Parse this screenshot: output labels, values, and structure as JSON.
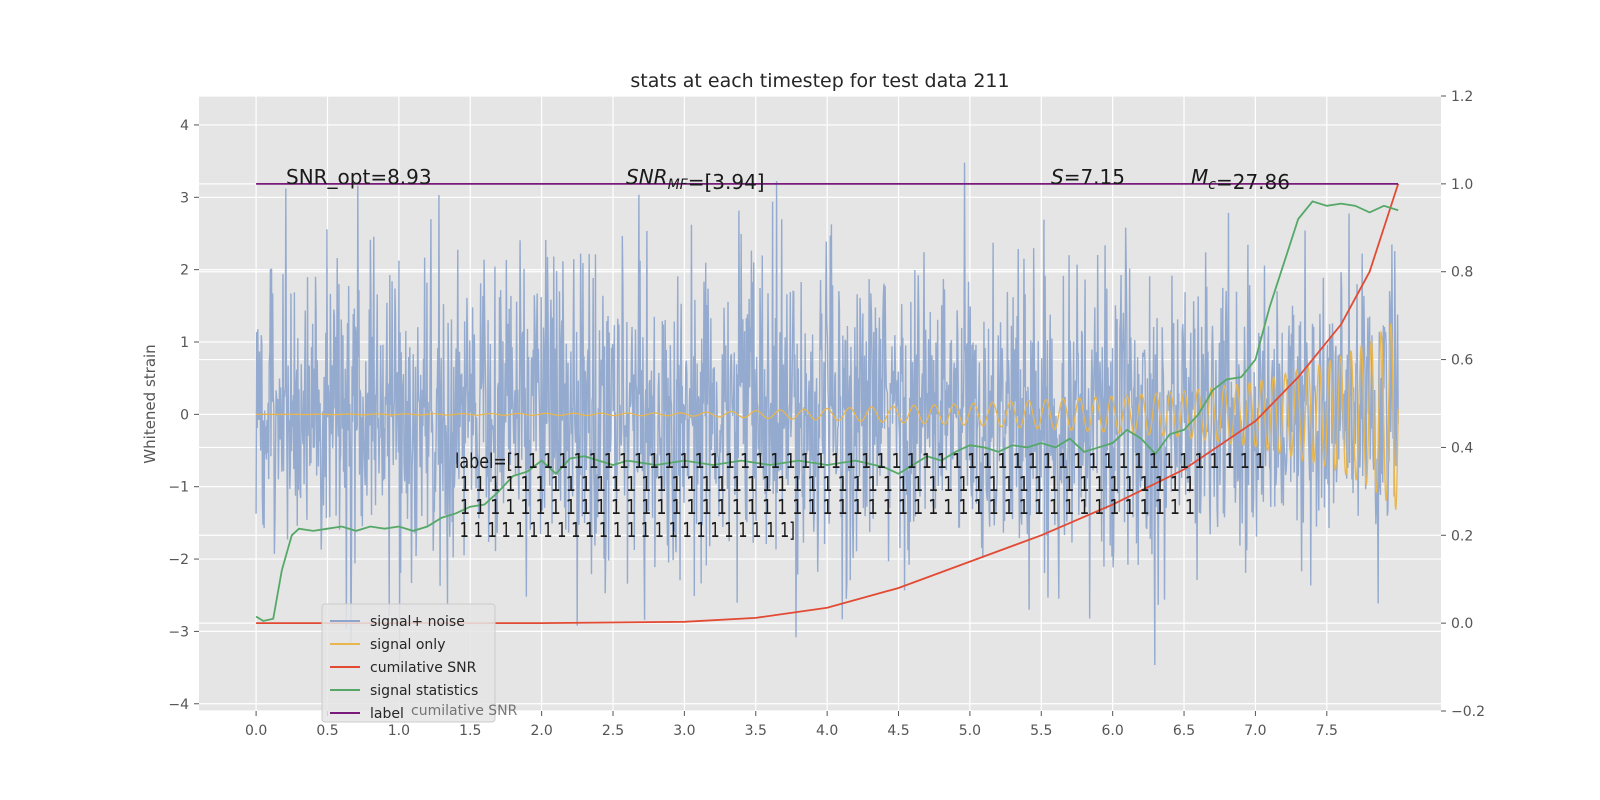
{
  "chart_data": {
    "type": "line",
    "title": "stats at each timestep for test data 211",
    "xlabel": "",
    "ylabel": "Whitened strain",
    "ylabel_right": "",
    "xlim": [
      -0.4,
      8.3
    ],
    "ylim": [
      -4.1,
      4.4
    ],
    "ylim_right": [
      -0.2,
      1.2
    ],
    "grid": true,
    "x_ticks": [
      "0.0",
      "0.5",
      "1.0",
      "1.5",
      "2.0",
      "2.5",
      "3.0",
      "3.5",
      "4.0",
      "4.5",
      "5.0",
      "5.5",
      "6.0",
      "6.5",
      "7.0",
      "7.5"
    ],
    "y_ticks": [
      "4",
      "3",
      "2",
      "1",
      "0",
      "−1",
      "−2",
      "−3",
      "−4"
    ],
    "y_right_ticks": [
      "1.2",
      "1.0",
      "0.8",
      "0.6",
      "0.4",
      "0.2",
      "0.0",
      "−0.2"
    ],
    "legend_placement": "lower-left",
    "series": [
      {
        "name": "signal+ noise",
        "axis": "left",
        "color": "#8fa6cc",
        "note_values": "dense noise time series, roughly within -3.6 to 4.0, std about 1",
        "x_range": [
          0.0,
          8.0
        ]
      },
      {
        "name": "signal only",
        "axis": "left",
        "color": "#e8b64f",
        "x": [
          0.0,
          3.0,
          4.0,
          5.0,
          6.0,
          6.5,
          7.0,
          7.5,
          7.8,
          8.0
        ],
        "envelope": [
          0.0,
          0.02,
          0.08,
          0.15,
          0.25,
          0.32,
          0.45,
          0.72,
          1.0,
          1.35
        ]
      },
      {
        "name": "cumilative SNR",
        "axis": "right",
        "color": "#e24a33",
        "x": [
          0.0,
          1.0,
          2.0,
          3.0,
          3.5,
          4.0,
          4.5,
          5.0,
          5.5,
          6.0,
          6.5,
          7.0,
          7.3,
          7.6,
          7.8,
          8.0
        ],
        "values": [
          0.0,
          0.0,
          0.0,
          0.003,
          0.012,
          0.035,
          0.08,
          0.14,
          0.2,
          0.27,
          0.35,
          0.46,
          0.56,
          0.68,
          0.8,
          1.0
        ]
      },
      {
        "name": "signal statistics",
        "axis": "right",
        "color": "#55a868",
        "x": [
          0.0,
          0.05,
          0.12,
          0.18,
          0.25,
          0.3,
          0.4,
          0.5,
          0.6,
          0.7,
          0.8,
          0.9,
          1.0,
          1.1,
          1.2,
          1.3,
          1.4,
          1.5,
          1.6,
          1.7,
          1.8,
          1.9,
          2.0,
          2.1,
          2.2,
          2.3,
          2.4,
          2.5,
          2.6,
          2.8,
          3.0,
          3.2,
          3.4,
          3.6,
          3.8,
          4.0,
          4.2,
          4.4,
          4.5,
          4.6,
          4.7,
          4.8,
          4.9,
          5.0,
          5.1,
          5.2,
          5.3,
          5.4,
          5.5,
          5.6,
          5.7,
          5.8,
          5.9,
          6.0,
          6.1,
          6.2,
          6.3,
          6.4,
          6.5,
          6.6,
          6.7,
          6.8,
          6.9,
          7.0,
          7.1,
          7.2,
          7.3,
          7.4,
          7.5,
          7.6,
          7.7,
          7.8,
          7.9,
          8.0
        ],
        "values": [
          0.015,
          0.005,
          0.01,
          0.12,
          0.2,
          0.215,
          0.21,
          0.215,
          0.22,
          0.21,
          0.22,
          0.215,
          0.22,
          0.21,
          0.22,
          0.24,
          0.25,
          0.265,
          0.27,
          0.3,
          0.335,
          0.345,
          0.37,
          0.34,
          0.375,
          0.38,
          0.37,
          0.36,
          0.37,
          0.36,
          0.37,
          0.36,
          0.37,
          0.36,
          0.37,
          0.36,
          0.37,
          0.355,
          0.34,
          0.36,
          0.38,
          0.37,
          0.39,
          0.405,
          0.4,
          0.39,
          0.405,
          0.4,
          0.41,
          0.4,
          0.42,
          0.39,
          0.4,
          0.41,
          0.44,
          0.42,
          0.385,
          0.43,
          0.44,
          0.475,
          0.53,
          0.555,
          0.56,
          0.6,
          0.72,
          0.82,
          0.92,
          0.96,
          0.95,
          0.955,
          0.95,
          0.935,
          0.95,
          0.94
        ]
      },
      {
        "name": "label",
        "axis": "right",
        "color": "#7a1a7a",
        "x": [
          0.0,
          8.0
        ],
        "values": [
          1.0,
          1.0
        ]
      }
    ],
    "annotations": [
      "SNR_opt=8.93",
      "SNR_MF=[3.94]",
      "S=7.15",
      "M_c=27.86",
      "label=[1 1 1 1 1 1 1 1 1 1 1 1 1 1 1 1 1 1 1 1 1 1 1 1 1 1 1 1 1 1 1 1 1 1 1 1 1 1 1 1 1 1 1 1 1 1 1 1 1 1 1 1 1 1 1 1 1 1 1 1 1 1 1 1 1 1 1 1 1 1 1 1 1 1 1 1 1 1 1 1 1 1 1 1 1 1 1 1 1 1 1 1 1 1 1 1 1 1 1 1 1 1 1 1 1 1 1 1 1 1 1 1 1 1 1 1 1 1 1 1 1 1 1 1 1 1 1 1 1 1 1 1 1 1 1 1 1 1 1 1 1 1 1 1]"
    ],
    "annotation_lines": [
      "label=[1 1 1 1 1 1 1 1 1 1 1 1 1 1 1 1 1 1 1 1 1 1 1 1 1 1 1 1 1 1 1 1 1 1 1 1 1 1 1 1 1 1 1 1 1 1 1 1 1 1",
      " 1 1 1 1 1 1 1 1 1 1 1 1 1 1 1 1 1 1 1 1 1 1 1 1 1 1 1 1 1 1 1 1 1 1 1 1 1 1 1 1 1 1 1 1 1 1 1 1 1",
      " 1 1 1 1 1 1 1 1 1 1 1 1 1 1 1 1 1 1 1 1 1 1 1 1 1 1 1 1 1 1 1 1 1 1 1 1 1 1 1 1 1 1 1 1 1 1 1 1 1",
      " 1 1 1 1 1 1 1 1 1 1 1 1 1 1 1 1 1 1 1 1 1 1 1 1]"
    ],
    "legend_overlap_text": "cumilative SNR"
  }
}
